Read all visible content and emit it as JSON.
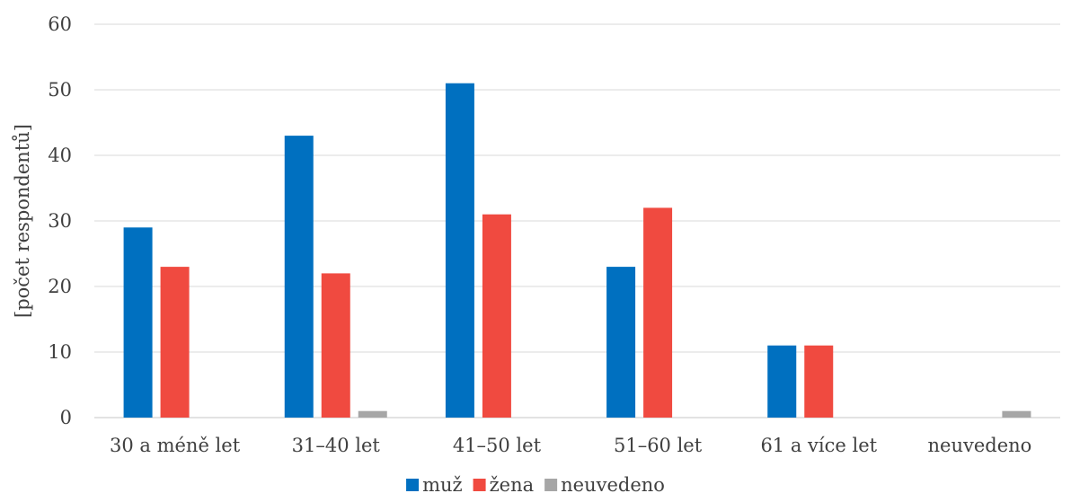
{
  "chart_data": {
    "type": "bar",
    "categories": [
      "30 a méně let",
      "31–40 let",
      "41–50 let",
      "51–60 let",
      "61 a více let",
      "neuvedeno"
    ],
    "series": [
      {
        "name": "muž",
        "color": "#0070c0",
        "values": [
          29,
          43,
          51,
          23,
          11,
          0
        ]
      },
      {
        "name": "žena",
        "color": "#f04a40",
        "values": [
          23,
          22,
          31,
          32,
          11,
          0
        ]
      },
      {
        "name": "neuvedeno",
        "color": "#a6a6a6",
        "values": [
          0,
          1,
          0,
          0,
          0,
          1
        ]
      }
    ],
    "ylabel": "[počet respondentů]",
    "ylim": [
      0,
      60
    ],
    "yticks": [
      0,
      10,
      20,
      30,
      40,
      50,
      60
    ],
    "grid": true,
    "legend_position": "bottom"
  }
}
